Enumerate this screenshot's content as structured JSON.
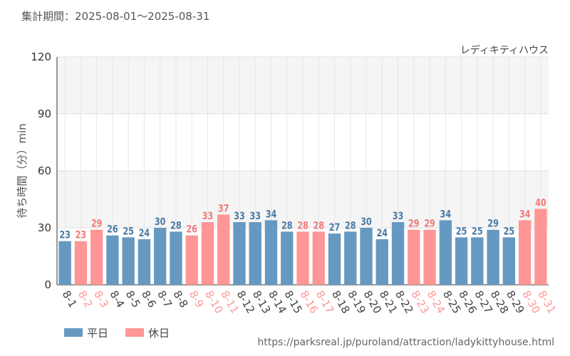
{
  "period_text": "集計期間：2025-08-01～2025-08-31",
  "attraction_name": "レディキティハウス",
  "source_url": "https://parksreal.jp/puroland/attraction/ladykittyhouse.html",
  "colors": {
    "weekday": "#6699c2",
    "holiday": "#ff9696",
    "weekday_label": "#4a7aa6",
    "holiday_label": "#f07a7a"
  },
  "legend": [
    {
      "label": "平日",
      "color": "#6699c2"
    },
    {
      "label": "休日",
      "color": "#ff9696"
    }
  ],
  "chart_data": {
    "type": "bar",
    "ylabel": "待ち時間（分）min",
    "ylim": [
      0,
      120
    ],
    "yticks": [
      0,
      30,
      60,
      90,
      120
    ],
    "grid": true,
    "legend_position": "bottom-left",
    "categories": [
      "8-1",
      "8-2",
      "8-3",
      "8-4",
      "8-5",
      "8-6",
      "8-7",
      "8-8",
      "8-9",
      "8-10",
      "8-11",
      "8-12",
      "8-13",
      "8-14",
      "8-15",
      "8-16",
      "8-17",
      "8-18",
      "8-19",
      "8-20",
      "8-21",
      "8-22",
      "8-23",
      "8-24",
      "8-25",
      "8-26",
      "8-27",
      "8-28",
      "8-29",
      "8-30",
      "8-31"
    ],
    "values": [
      23,
      23,
      29,
      26,
      25,
      24,
      30,
      28,
      26,
      33,
      37,
      33,
      33,
      34,
      28,
      28,
      28,
      27,
      28,
      30,
      24,
      33,
      29,
      29,
      34,
      25,
      25,
      29,
      25,
      34,
      40
    ],
    "day_type": [
      "平日",
      "休日",
      "休日",
      "平日",
      "平日",
      "平日",
      "平日",
      "平日",
      "休日",
      "休日",
      "休日",
      "平日",
      "平日",
      "平日",
      "平日",
      "休日",
      "休日",
      "平日",
      "平日",
      "平日",
      "平日",
      "平日",
      "休日",
      "休日",
      "平日",
      "平日",
      "平日",
      "平日",
      "平日",
      "休日",
      "休日"
    ]
  }
}
